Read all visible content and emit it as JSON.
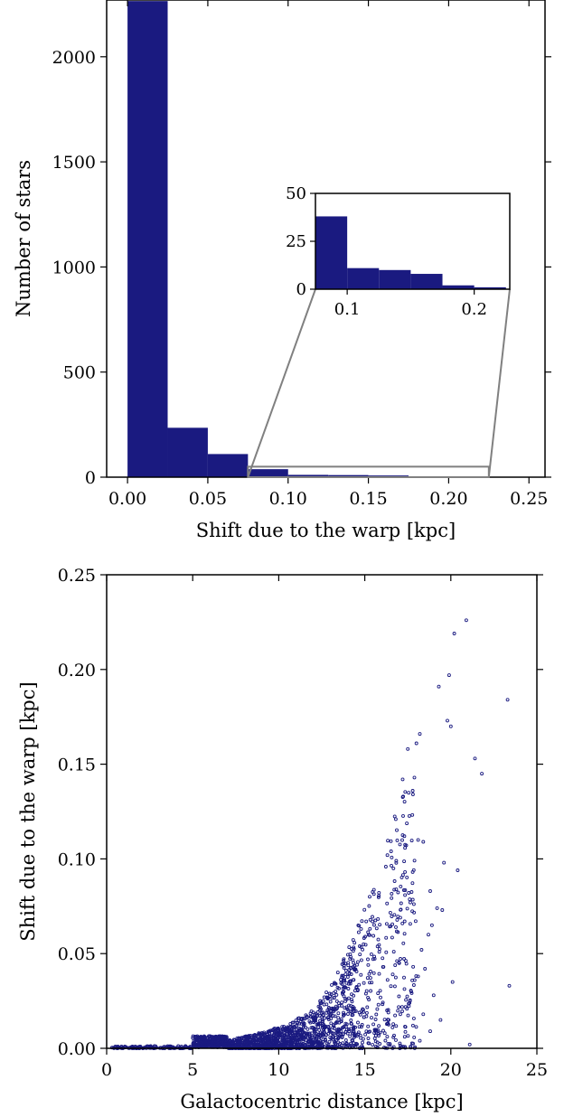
{
  "chart_data": [
    {
      "type": "bar",
      "subtype": "histogram",
      "xlabel": "Shift due to the warp [kpc]",
      "ylabel": "Number of stars",
      "xlim": [
        -0.013,
        0.26
      ],
      "ylim": [
        0,
        2270
      ],
      "xticks": [
        "0.00",
        "0.05",
        "0.10",
        "0.15",
        "0.20",
        "0.25"
      ],
      "yticks": [
        "0",
        "500",
        "1000",
        "1500",
        "2000"
      ],
      "color": "#1a1a80",
      "bins": [
        {
          "x0": 0.0,
          "x1": 0.025,
          "value": 2265
        },
        {
          "x0": 0.025,
          "x1": 0.05,
          "value": 235
        },
        {
          "x0": 0.05,
          "x1": 0.075,
          "value": 110
        },
        {
          "x0": 0.075,
          "x1": 0.1,
          "value": 38
        },
        {
          "x0": 0.1,
          "x1": 0.125,
          "value": 11
        },
        {
          "x0": 0.125,
          "x1": 0.15,
          "value": 10
        },
        {
          "x0": 0.15,
          "x1": 0.175,
          "value": 8
        },
        {
          "x0": 0.175,
          "x1": 0.2,
          "value": 2
        },
        {
          "x0": 0.2,
          "x1": 0.225,
          "value": 1
        }
      ],
      "inset": {
        "xlim": [
          0.075,
          0.228
        ],
        "ylim": [
          0,
          50
        ],
        "xticks": [
          "0.1",
          "0.2"
        ],
        "yticks": [
          "0",
          "25",
          "50"
        ],
        "zoom_region": {
          "x": [
            0.075,
            0.225
          ],
          "y": [
            0,
            50
          ]
        }
      }
    },
    {
      "type": "scatter",
      "xlabel": "Galactocentric distance [kpc]",
      "ylabel": "Shift due to the warp [kpc]",
      "xlim": [
        0,
        25
      ],
      "ylim": [
        0,
        0.25
      ],
      "xticks": [
        "0",
        "5",
        "10",
        "15",
        "20",
        "25"
      ],
      "yticks": [
        "0.00",
        "0.05",
        "0.10",
        "0.15",
        "0.20",
        "0.25"
      ],
      "color": "#1a1a80",
      "marker": "open-circle",
      "n_generated": 2000,
      "outliers": [
        [
          20.9,
          0.226
        ],
        [
          20.2,
          0.219
        ],
        [
          19.9,
          0.197
        ],
        [
          19.3,
          0.191
        ],
        [
          23.3,
          0.184
        ],
        [
          19.8,
          0.173
        ],
        [
          20.0,
          0.17
        ],
        [
          18.2,
          0.166
        ],
        [
          18.0,
          0.161
        ],
        [
          17.5,
          0.158
        ],
        [
          21.4,
          0.153
        ],
        [
          21.8,
          0.145
        ],
        [
          17.2,
          0.142
        ],
        [
          16.8,
          0.121
        ],
        [
          17.3,
          0.112
        ],
        [
          18.1,
          0.11
        ],
        [
          18.4,
          0.109
        ],
        [
          19.6,
          0.098
        ],
        [
          20.4,
          0.094
        ],
        [
          18.8,
          0.083
        ],
        [
          19.2,
          0.074
        ],
        [
          19.5,
          0.073
        ],
        [
          18.9,
          0.065
        ],
        [
          18.7,
          0.06
        ],
        [
          18.3,
          0.052
        ],
        [
          18.5,
          0.042
        ],
        [
          18.1,
          0.038
        ],
        [
          17.9,
          0.036
        ],
        [
          19.0,
          0.028
        ],
        [
          20.1,
          0.035
        ],
        [
          23.4,
          0.033
        ],
        [
          17.6,
          0.024
        ],
        [
          18.4,
          0.018
        ],
        [
          19.4,
          0.015
        ],
        [
          17.8,
          0.012
        ],
        [
          18.8,
          0.009
        ],
        [
          21.1,
          0.002
        ],
        [
          18.2,
          0.004
        ],
        [
          17.7,
          0.03
        ],
        [
          17.0,
          0.045
        ]
      ]
    }
  ]
}
